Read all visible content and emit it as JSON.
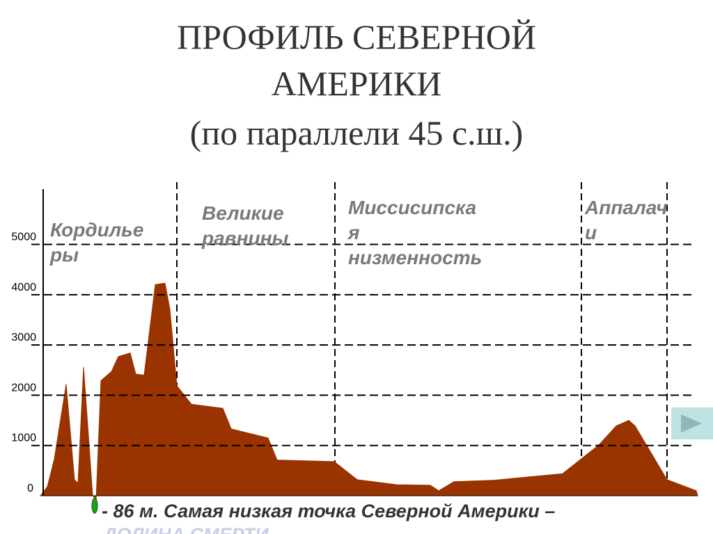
{
  "chart_data": {
    "type": "area",
    "title": [
      "ПРОФИЛЬ СЕВЕРНОЙ",
      "АМЕРИКИ",
      "(по параллели 45  с.ш.)"
    ],
    "regions": [
      {
        "lines": [
          "Кордилье",
          "ры"
        ]
      },
      {
        "lines": [
          "Великие",
          "равнины"
        ]
      },
      {
        "lines": [
          "Миссисипска",
          "я",
          "низменность"
        ]
      },
      {
        "lines": [
          "Аппалач",
          "и"
        ]
      }
    ],
    "note": "- 86 м. Самая низкая точка Северной Америки –",
    "note_continued": "ДОЛИНА СМЕРТИ",
    "x": [
      0,
      10,
      20,
      37,
      49,
      54,
      62,
      70,
      75,
      80,
      87,
      102,
      112,
      129,
      137,
      149,
      165,
      179,
      186,
      196,
      217,
      262,
      274,
      327,
      340,
      422,
      455,
      512,
      560,
      572,
      594,
      652,
      750,
      802,
      827,
      845,
      854,
      900,
      942,
      944
    ],
    "values": [
      0,
      180,
      730,
      2220,
      320,
      250,
      2560,
      1010,
      10,
      -86,
      2290,
      2470,
      2770,
      2840,
      2420,
      2400,
      4200,
      4230,
      3710,
      2190,
      1820,
      1740,
      1330,
      1150,
      710,
      680,
      320,
      220,
      210,
      100,
      280,
      310,
      440,
      1010,
      1390,
      1500,
      1390,
      320,
      100,
      0
    ],
    "color": "#993300",
    "xlim": [
      0,
      944
    ],
    "ylim": [
      0,
      6100
    ],
    "yticks": [
      0,
      1000,
      2000,
      3000,
      4000,
      5000
    ],
    "grid": true
  }
}
